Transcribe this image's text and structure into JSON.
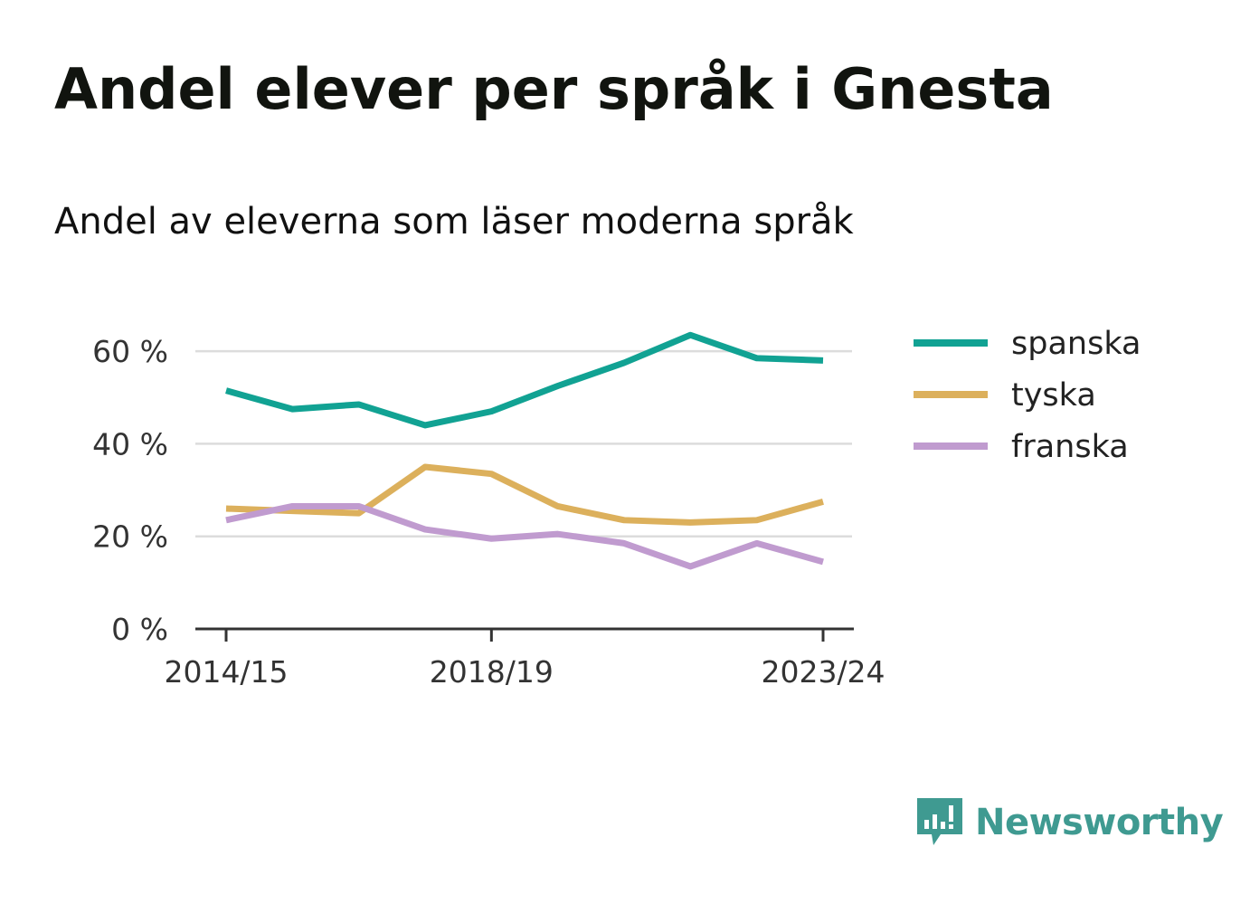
{
  "title": "Andel elever per språk i Gnesta",
  "subtitle": "Andel av eleverna som läser moderna språk",
  "brand": {
    "name": "Newsworthy",
    "color": "#3f9a91"
  },
  "chart_data": {
    "type": "line",
    "x": [
      "2014/15",
      "2015/16",
      "2016/17",
      "2017/18",
      "2018/19",
      "2019/20",
      "2020/21",
      "2021/22",
      "2022/23",
      "2023/24"
    ],
    "x_tick_labels": [
      "2014/15",
      "2018/19",
      "2023/24"
    ],
    "y_ticks": [
      0,
      20,
      40,
      60
    ],
    "y_tick_labels": [
      "0 %",
      "20 %",
      "40 %",
      "60 %"
    ],
    "ylim": [
      0,
      70
    ],
    "grid": true,
    "legend_position": "right",
    "series": [
      {
        "name": "spanska",
        "color": "#11a293",
        "values": [
          51.5,
          47.5,
          48.5,
          44,
          47,
          52.5,
          57.5,
          63.5,
          58.5,
          58
        ]
      },
      {
        "name": "tyska",
        "color": "#dcb05c",
        "values": [
          26,
          25.5,
          25,
          35,
          33.5,
          26.5,
          23.5,
          23,
          23.5,
          27.5
        ]
      },
      {
        "name": "franska",
        "color": "#c09bcf",
        "values": [
          23.5,
          26.5,
          26.5,
          21.5,
          19.5,
          20.5,
          18.5,
          13.5,
          18.5,
          14.5
        ]
      }
    ]
  }
}
